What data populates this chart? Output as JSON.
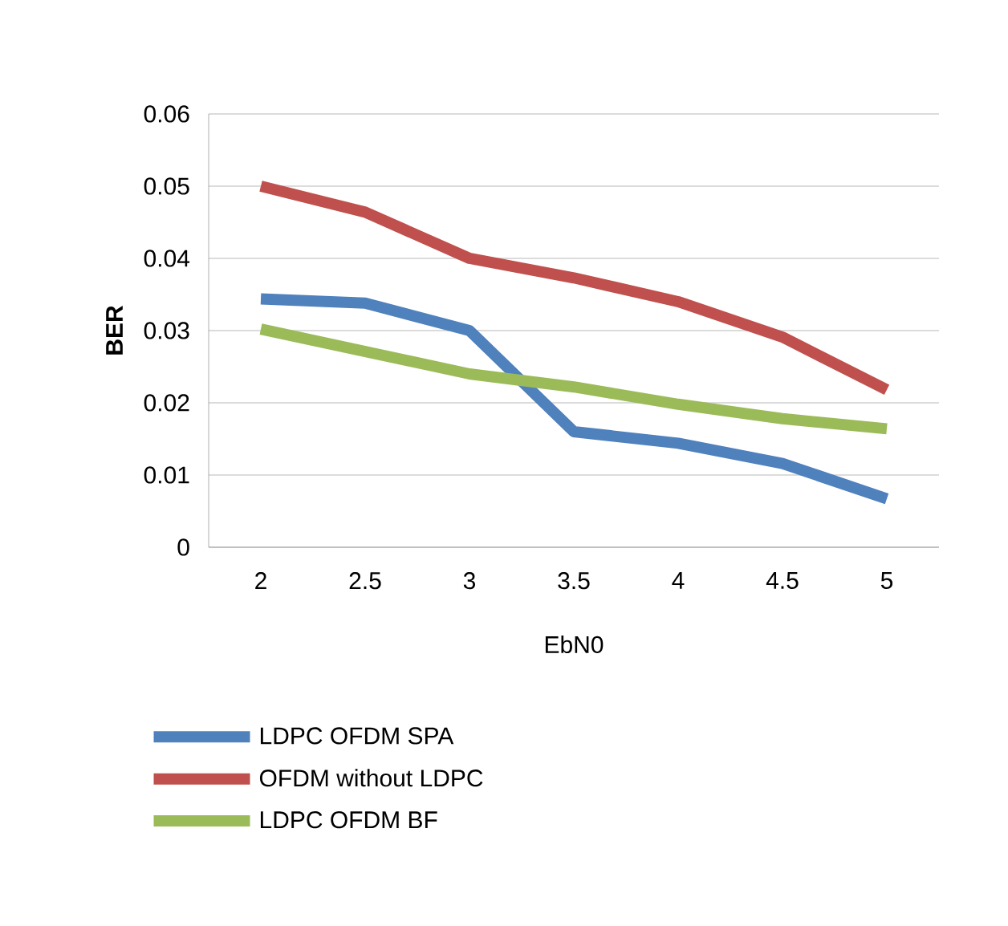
{
  "chart_data": {
    "type": "line",
    "xlabel": "EbN0",
    "ylabel": "BER",
    "categories": [
      "2",
      "2.5",
      "3",
      "3.5",
      "4",
      "4.5",
      "5"
    ],
    "series": [
      {
        "name": "LDPC OFDM SPA",
        "color": "#4f81bd",
        "values": [
          0.0344,
          0.0338,
          0.03,
          0.016,
          0.0144,
          0.0116,
          0.0067
        ]
      },
      {
        "name": "OFDM without LDPC",
        "color": "#c0504d",
        "values": [
          0.05,
          0.0464,
          0.04,
          0.0373,
          0.034,
          0.0291,
          0.0218
        ]
      },
      {
        "name": "LDPC OFDM BF",
        "color": "#9bbb59",
        "values": [
          0.0302,
          0.0271,
          0.024,
          0.0222,
          0.0198,
          0.0178,
          0.0164
        ]
      }
    ],
    "ylim": [
      0,
      0.06
    ],
    "yticks": [
      0,
      0.01,
      0.02,
      0.03,
      0.04,
      0.05,
      0.06
    ],
    "grid": "y",
    "legend": "bottom",
    "marker": "none",
    "line_style": "solid"
  }
}
